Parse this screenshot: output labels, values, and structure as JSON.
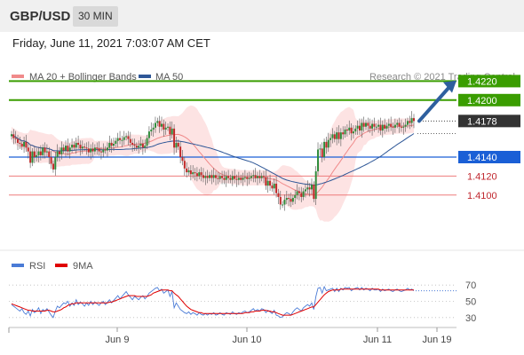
{
  "header": {
    "pair": "GBP/USD",
    "timeframe": "30 MIN"
  },
  "datetime": "Friday, June 11, 2021 7:03:07 AM CET",
  "copyright": "Research © 2021 Trading Central",
  "colors": {
    "resistance": "#3a9d00",
    "support": "#1a5fd6",
    "support_minor": "#ee7b7b",
    "support_label": "#c0262d",
    "price_box": "#333333",
    "ma20": "#f08a8a",
    "bollinger_fill": "#fde0e0",
    "ma50": "#2e5797",
    "rsi": "#4a7bd6",
    "rsi_ma": "#e00000",
    "candle_up": "#2e8b3a",
    "candle_down": "#c02828",
    "arrow": "#2e5f9e"
  },
  "chart_data": [
    {
      "type": "candlestick",
      "legend": [
        {
          "name": "MA 20 + Bollinger Bands",
          "color": "#f08a8a"
        },
        {
          "name": "MA 50",
          "color": "#2e5797"
        }
      ],
      "x_ticks": [
        "Jun 9",
        "Jun 10",
        "Jun 11",
        "Jun 19"
      ],
      "ylim": [
        1.404,
        1.424
      ],
      "last_price": 1.4178,
      "levels": [
        {
          "value": 1.422,
          "label": "1.4220",
          "kind": "resistance"
        },
        {
          "value": 1.42,
          "label": "1.4200",
          "kind": "resistance"
        },
        {
          "value": 1.4178,
          "label": "1.4178",
          "kind": "price"
        },
        {
          "value": 1.414,
          "label": "1.4140",
          "kind": "support"
        },
        {
          "value": 1.412,
          "label": "1.4120",
          "kind": "support_minor"
        },
        {
          "value": 1.41,
          "label": "1.4100",
          "kind": "support_minor"
        }
      ],
      "candle_closes": [
        1.4164,
        1.416,
        1.4159,
        1.4155,
        1.4154,
        1.4151,
        1.4156,
        1.415,
        1.4146,
        1.4134,
        1.4146,
        1.414,
        1.4142,
        1.4146,
        1.4142,
        1.415,
        1.4145,
        1.4146,
        1.414,
        1.4133,
        1.4127,
        1.414,
        1.4146,
        1.4143,
        1.415,
        1.4147,
        1.4152,
        1.4146,
        1.415,
        1.4153,
        1.415,
        1.4155,
        1.4153,
        1.4149,
        1.4151,
        1.415,
        1.4149,
        1.4145,
        1.4149,
        1.4146,
        1.415,
        1.4149,
        1.4146,
        1.4145,
        1.4148,
        1.4147,
        1.415,
        1.4155,
        1.4152,
        1.4154,
        1.4157,
        1.416,
        1.4158,
        1.4158,
        1.4161,
        1.4162,
        1.4159,
        1.4155,
        1.4153,
        1.4152,
        1.415,
        1.4152,
        1.4154,
        1.415,
        1.4152,
        1.416,
        1.4167,
        1.4169,
        1.4171,
        1.4176,
        1.4178,
        1.4172,
        1.4175,
        1.4169,
        1.4171,
        1.4172,
        1.4164,
        1.417,
        1.415,
        1.4155,
        1.4151,
        1.414,
        1.4136,
        1.4128,
        1.4124,
        1.4126,
        1.4122,
        1.4124,
        1.4123,
        1.412,
        1.4124,
        1.4121,
        1.4118,
        1.412,
        1.4118,
        1.4121,
        1.4118,
        1.4121,
        1.4118,
        1.4117,
        1.412,
        1.4118,
        1.4116,
        1.412,
        1.4118,
        1.4116,
        1.412,
        1.4117,
        1.4116,
        1.4118,
        1.4116,
        1.4118,
        1.4119,
        1.4117,
        1.4118,
        1.412,
        1.4121,
        1.4118,
        1.412,
        1.4118,
        1.412,
        1.4119,
        1.411,
        1.4115,
        1.411,
        1.4107,
        1.4112,
        1.4102,
        1.4098,
        1.409,
        1.409,
        1.4095,
        1.4097,
        1.4096,
        1.4093,
        1.4097,
        1.41,
        1.4104,
        1.4102,
        1.4098,
        1.4104,
        1.4106,
        1.4108,
        1.4106,
        1.4111,
        1.4096,
        1.4125,
        1.4148,
        1.4149,
        1.414,
        1.4156,
        1.415,
        1.4158,
        1.416,
        1.4164,
        1.4159,
        1.4166,
        1.4159,
        1.4166,
        1.4164,
        1.4169,
        1.4168,
        1.4171,
        1.4165,
        1.4167,
        1.417,
        1.4173,
        1.4168,
        1.4176,
        1.4172,
        1.4176,
        1.4173,
        1.417,
        1.4175,
        1.4172,
        1.4172,
        1.4174,
        1.4168,
        1.4174,
        1.417,
        1.4173,
        1.4175,
        1.4172,
        1.4171,
        1.4174,
        1.4176,
        1.4172,
        1.4171,
        1.4172,
        1.4174,
        1.4178,
        1.4176,
        1.4181,
        1.4178
      ]
    },
    {
      "type": "line",
      "legend": [
        {
          "name": "RSI",
          "color": "#4a7bd6"
        },
        {
          "name": "9MA",
          "color": "#e00000"
        }
      ],
      "y_ticks": [
        70,
        50,
        30
      ],
      "ylim": [
        20,
        80
      ],
      "series": [
        {
          "name": "RSI",
          "values": [
            46,
            44,
            42,
            40,
            38,
            41,
            36,
            34,
            38,
            32,
            40,
            36,
            38,
            42,
            35,
            40,
            38,
            41,
            37,
            33,
            30,
            38,
            44,
            42,
            45,
            48,
            47,
            50,
            44,
            48,
            45,
            52,
            46,
            49,
            47,
            44,
            48,
            45,
            50,
            46,
            49,
            47,
            45,
            48,
            50,
            46,
            49,
            52,
            48,
            51,
            54,
            57,
            53,
            56,
            59,
            62,
            58,
            55,
            52,
            56,
            54,
            52,
            55,
            57,
            53,
            56,
            60,
            62,
            64,
            66,
            67,
            63,
            65,
            60,
            62,
            64,
            56,
            62,
            42,
            48,
            44,
            40,
            38,
            36,
            35,
            37,
            34,
            36,
            35,
            33,
            36,
            34,
            33,
            35,
            33,
            35,
            34,
            36,
            33,
            34,
            36,
            34,
            33,
            36,
            35,
            34,
            37,
            35,
            34,
            36,
            35,
            37,
            38,
            36,
            37,
            39,
            41,
            38,
            40,
            38,
            41,
            40,
            36,
            39,
            37,
            35,
            39,
            33,
            32,
            30,
            31,
            34,
            36,
            35,
            33,
            37,
            40,
            42,
            40,
            38,
            42,
            44,
            46,
            44,
            48,
            40,
            56,
            66,
            67,
            60,
            68,
            63,
            64,
            65,
            66,
            62,
            66,
            62,
            66,
            64,
            67,
            66,
            67,
            63,
            65,
            66,
            67,
            64,
            67,
            64,
            66,
            65,
            63,
            66,
            64,
            64,
            65,
            62,
            65,
            63,
            64,
            65,
            63,
            62,
            64,
            65,
            63,
            62,
            63,
            64,
            66,
            64,
            65,
            63
          ]
        },
        {
          "name": "9MA",
          "values": [
            47,
            46,
            45,
            44,
            43,
            42,
            41,
            40,
            39,
            39,
            38,
            38,
            38,
            38,
            38,
            38,
            38,
            39,
            39,
            38,
            37,
            37,
            38,
            39,
            40,
            42,
            43,
            45,
            46,
            47,
            47,
            48,
            48,
            48,
            48,
            48,
            48,
            48,
            48,
            48,
            48,
            48,
            48,
            48,
            48,
            48,
            48,
            49,
            49,
            50,
            51,
            52,
            53,
            54,
            55,
            56,
            57,
            57,
            57,
            57,
            56,
            56,
            56,
            56,
            56,
            56,
            57,
            58,
            60,
            61,
            62,
            63,
            64,
            64,
            64,
            64,
            63,
            63,
            60,
            58,
            56,
            53,
            50,
            47,
            44,
            42,
            40,
            39,
            38,
            37,
            36,
            36,
            35,
            35,
            35,
            35,
            35,
            35,
            35,
            35,
            35,
            35,
            35,
            35,
            35,
            35,
            35,
            35,
            35,
            35,
            35,
            35,
            36,
            36,
            36,
            37,
            37,
            38,
            38,
            38,
            39,
            39,
            39,
            38,
            38,
            37,
            37,
            36,
            35,
            34,
            33,
            33,
            33,
            33,
            33,
            34,
            35,
            36,
            37,
            38,
            39,
            40,
            41,
            42,
            43,
            43,
            46,
            49,
            52,
            55,
            58,
            60,
            62,
            63,
            64,
            64,
            64,
            64,
            65,
            65,
            65,
            65,
            65,
            65,
            65,
            65,
            65,
            65,
            65,
            65,
            65,
            65,
            65,
            65,
            65,
            65,
            65,
            64,
            64,
            64,
            64,
            64,
            64,
            64,
            64,
            64,
            64,
            64,
            64,
            64,
            64,
            64,
            64,
            64
          ]
        }
      ]
    }
  ]
}
